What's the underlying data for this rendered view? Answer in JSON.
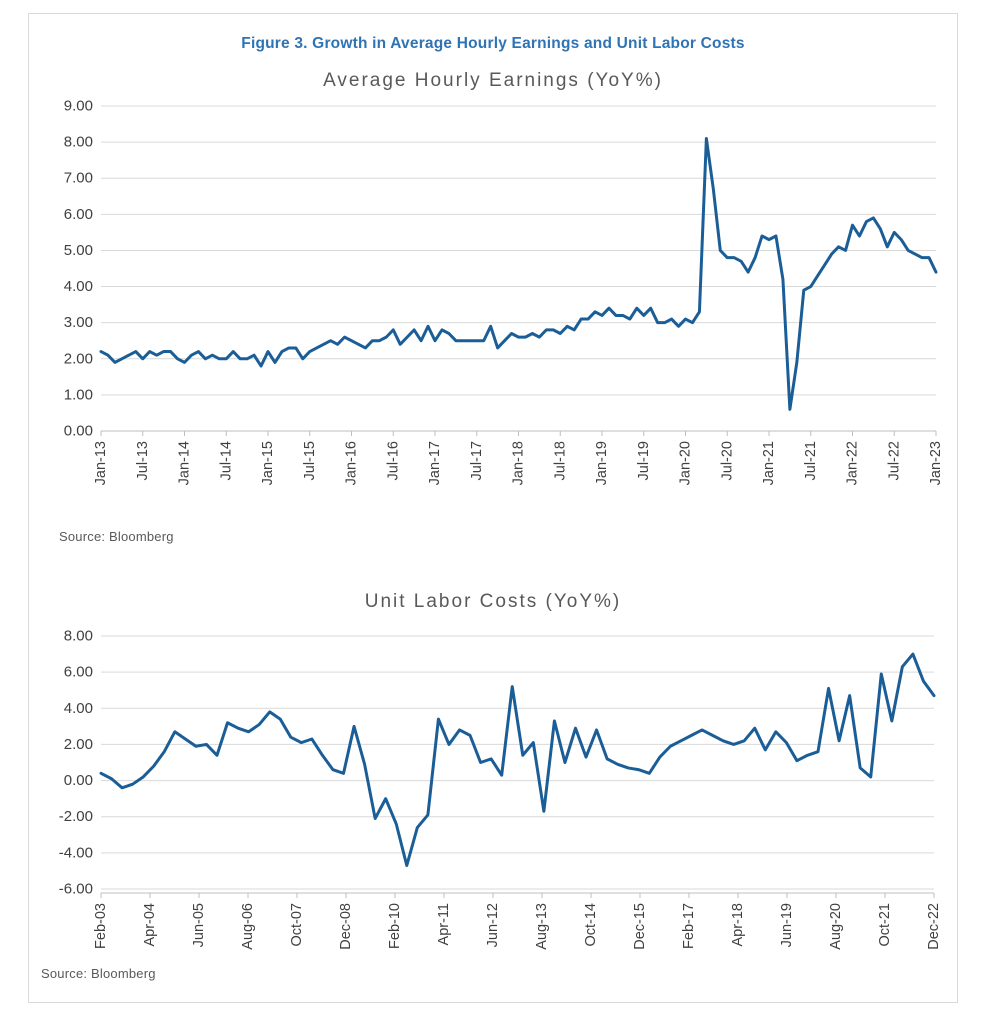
{
  "figure": {
    "title": "Figure 3. Growth in Average Hourly Earnings and Unit Labor Costs",
    "title_color": "#2e74b5"
  },
  "chart_data": [
    {
      "type": "line",
      "title": "Average Hourly Earnings (YoY%)",
      "source": "Source: Bloomberg",
      "line_color": "#1b5e97",
      "frequency": "monthly",
      "x_range": [
        "Jan-13",
        "Jan-23"
      ],
      "ylim": [
        0,
        9
      ],
      "grid": true,
      "legend": "none",
      "ytick_values": [
        9,
        8,
        7,
        6,
        5,
        4,
        3,
        2,
        1,
        0
      ],
      "ytick_labels": [
        "9.00",
        "8.00",
        "7.00",
        "6.00",
        "5.00",
        "4.00",
        "3.00",
        "2.00",
        "1.00",
        "0.00"
      ],
      "xtick_labels": [
        "Jan-13",
        "Jul-13",
        "Jan-14",
        "Jul-14",
        "Jan-15",
        "Jul-15",
        "Jan-16",
        "Jul-16",
        "Jan-17",
        "Jul-17",
        "Jan-18",
        "Jul-18",
        "Jan-19",
        "Jul-19",
        "Jan-20",
        "Jul-20",
        "Jan-21",
        "Jul-21",
        "Jan-22",
        "Jul-22",
        "Jan-23"
      ],
      "values": [
        2.2,
        2.1,
        1.9,
        2.0,
        2.1,
        2.2,
        2.0,
        2.2,
        2.1,
        2.2,
        2.2,
        2.0,
        1.9,
        2.1,
        2.2,
        2.0,
        2.1,
        2.0,
        2.0,
        2.2,
        2.0,
        2.0,
        2.1,
        1.8,
        2.2,
        1.9,
        2.2,
        2.3,
        2.3,
        2.0,
        2.2,
        2.3,
        2.4,
        2.5,
        2.4,
        2.6,
        2.5,
        2.4,
        2.3,
        2.5,
        2.5,
        2.6,
        2.8,
        2.4,
        2.6,
        2.8,
        2.5,
        2.9,
        2.5,
        2.8,
        2.7,
        2.5,
        2.5,
        2.5,
        2.5,
        2.5,
        2.9,
        2.3,
        2.5,
        2.7,
        2.6,
        2.6,
        2.7,
        2.6,
        2.8,
        2.8,
        2.7,
        2.9,
        2.8,
        3.1,
        3.1,
        3.3,
        3.2,
        3.4,
        3.2,
        3.2,
        3.1,
        3.4,
        3.2,
        3.4,
        3.0,
        3.0,
        3.1,
        2.9,
        3.1,
        3.0,
        3.3,
        8.1,
        6.7,
        5.0,
        4.8,
        4.8,
        4.7,
        4.4,
        4.8,
        5.4,
        5.3,
        5.4,
        4.2,
        0.6,
        1.9,
        3.9,
        4.0,
        4.3,
        4.6,
        4.9,
        5.1,
        5.0,
        5.7,
        5.4,
        5.8,
        5.9,
        5.6,
        5.1,
        5.5,
        5.3,
        5.0,
        4.9,
        4.8,
        4.8,
        4.4
      ]
    },
    {
      "type": "line",
      "title": "Unit Labor Costs (YoY%)",
      "source": "Source: Bloomberg",
      "line_color": "#1b5e97",
      "frequency": "quarterly",
      "x_range": [
        "Feb-03",
        "Dec-22"
      ],
      "ylim": [
        -6,
        8
      ],
      "grid": true,
      "legend": "none",
      "ytick_values": [
        8,
        6,
        4,
        2,
        0,
        -2,
        -4,
        -6
      ],
      "ytick_labels": [
        "8.00",
        "6.00",
        "4.00",
        "2.00",
        "0.00",
        "-2.00",
        "-4.00",
        "-6.00"
      ],
      "xtick_labels": [
        "Feb-03",
        "Apr-04",
        "Jun-05",
        "Aug-06",
        "Oct-07",
        "Dec-08",
        "Feb-10",
        "Apr-11",
        "Jun-12",
        "Aug-13",
        "Oct-14",
        "Dec-15",
        "Feb-17",
        "Apr-18",
        "Jun-19",
        "Aug-20",
        "Oct-21",
        "Dec-22"
      ],
      "values": [
        0.4,
        0.1,
        -0.4,
        -0.2,
        0.2,
        0.8,
        1.6,
        2.7,
        2.3,
        1.9,
        2.0,
        1.4,
        3.2,
        2.9,
        2.7,
        3.1,
        3.8,
        3.4,
        2.4,
        2.1,
        2.3,
        1.4,
        0.6,
        0.4,
        3.0,
        0.9,
        -2.1,
        -1.0,
        -2.4,
        -4.7,
        -2.6,
        -1.9,
        3.4,
        2.0,
        2.8,
        2.5,
        1.0,
        1.2,
        0.3,
        5.2,
        1.4,
        2.1,
        -1.7,
        3.3,
        1.0,
        2.9,
        1.3,
        2.8,
        1.2,
        0.9,
        0.7,
        0.6,
        0.4,
        1.3,
        1.9,
        2.2,
        2.5,
        2.8,
        2.5,
        2.2,
        2.0,
        2.2,
        2.9,
        1.7,
        2.7,
        2.1,
        1.1,
        1.4,
        1.6,
        5.1,
        2.2,
        4.7,
        0.7,
        0.2,
        5.9,
        3.3,
        6.3,
        7.0,
        5.5,
        4.7
      ]
    }
  ],
  "style": {
    "grid_color": "#d9d9d9",
    "axis_color": "#bfbfbf",
    "tick_label_color": "#404040"
  }
}
